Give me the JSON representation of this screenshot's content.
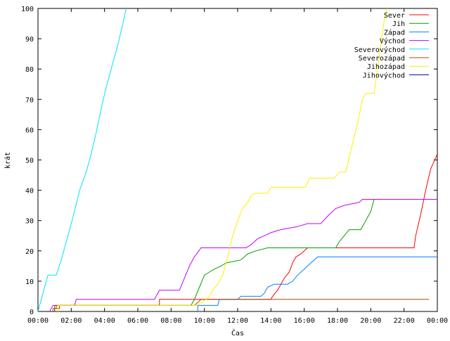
{
  "chart_data": {
    "type": "line",
    "title": "",
    "xlabel": "Čas",
    "ylabel": "krát",
    "x_ticks": [
      "00:00",
      "02:00",
      "04:00",
      "06:00",
      "08:00",
      "10:00",
      "12:00",
      "14:00",
      "16:00",
      "18:00",
      "20:00",
      "22:00",
      "00:00"
    ],
    "x_tick_hours": [
      0,
      2,
      4,
      6,
      8,
      10,
      12,
      14,
      16,
      18,
      20,
      22,
      24
    ],
    "xlim_hours": [
      0,
      24
    ],
    "ylim": [
      0,
      100
    ],
    "y_ticks": [
      0,
      10,
      20,
      30,
      40,
      50,
      60,
      70,
      80,
      90,
      100
    ],
    "grid": false,
    "legend_position": "top-right",
    "series": [
      {
        "name": "Sever",
        "color": "#ff0000",
        "points": [
          [
            1.0,
            0
          ],
          [
            1.0,
            1
          ],
          [
            1.3,
            1
          ],
          [
            1.3,
            2
          ],
          [
            7.3,
            2
          ],
          [
            7.3,
            4
          ],
          [
            14.0,
            4
          ],
          [
            14.1,
            5
          ],
          [
            14.4,
            7
          ],
          [
            14.6,
            9
          ],
          [
            14.8,
            11
          ],
          [
            15.1,
            13
          ],
          [
            15.3,
            16
          ],
          [
            15.5,
            18
          ],
          [
            15.8,
            19
          ],
          [
            16.0,
            20
          ],
          [
            16.2,
            21
          ],
          [
            22.6,
            21
          ],
          [
            22.7,
            25
          ],
          [
            23.0,
            32
          ],
          [
            23.3,
            40
          ],
          [
            23.6,
            47
          ],
          [
            24.0,
            52
          ]
        ]
      },
      {
        "name": "Jih",
        "color": "#00a000",
        "points": [
          [
            1.0,
            0
          ],
          [
            1.0,
            2
          ],
          [
            9.2,
            2
          ],
          [
            9.4,
            4
          ],
          [
            9.7,
            8
          ],
          [
            10.0,
            12
          ],
          [
            10.3,
            13
          ],
          [
            10.6,
            14
          ],
          [
            11.0,
            15
          ],
          [
            11.3,
            16
          ],
          [
            12.2,
            17
          ],
          [
            12.6,
            19
          ],
          [
            13.1,
            20
          ],
          [
            13.8,
            21
          ],
          [
            17.9,
            21
          ],
          [
            18.1,
            23
          ],
          [
            18.4,
            25
          ],
          [
            18.7,
            27
          ],
          [
            19.4,
            27
          ],
          [
            19.7,
            30
          ],
          [
            20.0,
            33
          ],
          [
            20.2,
            37
          ],
          [
            24.0,
            37
          ]
        ]
      },
      {
        "name": "Západ",
        "color": "#0080ff",
        "points": [
          [
            9.6,
            0
          ],
          [
            9.6,
            2
          ],
          [
            10.8,
            2
          ],
          [
            10.9,
            4
          ],
          [
            12.0,
            4
          ],
          [
            12.2,
            5
          ],
          [
            13.4,
            5
          ],
          [
            13.6,
            6
          ],
          [
            13.8,
            8
          ],
          [
            14.2,
            9
          ],
          [
            15.0,
            9
          ],
          [
            15.3,
            10
          ],
          [
            15.6,
            12
          ],
          [
            16.0,
            14
          ],
          [
            16.4,
            16
          ],
          [
            16.8,
            18
          ],
          [
            24.0,
            18
          ]
        ]
      },
      {
        "name": "Východ",
        "color": "#c000ff",
        "points": [
          [
            0.7,
            0
          ],
          [
            0.8,
            1
          ],
          [
            0.9,
            2
          ],
          [
            2.2,
            2
          ],
          [
            2.3,
            4
          ],
          [
            7.0,
            4
          ],
          [
            7.3,
            7
          ],
          [
            8.5,
            7
          ],
          [
            8.8,
            11
          ],
          [
            9.1,
            15
          ],
          [
            9.4,
            18
          ],
          [
            9.8,
            21
          ],
          [
            12.5,
            21
          ],
          [
            12.8,
            22
          ],
          [
            13.2,
            24
          ],
          [
            13.6,
            25
          ],
          [
            14.0,
            26
          ],
          [
            14.6,
            27
          ],
          [
            15.6,
            28
          ],
          [
            16.2,
            29
          ],
          [
            17.0,
            29
          ],
          [
            17.5,
            32
          ],
          [
            17.9,
            34
          ],
          [
            18.4,
            35
          ],
          [
            19.3,
            36
          ],
          [
            19.5,
            37
          ],
          [
            24.0,
            37
          ]
        ]
      },
      {
        "name": "Severovýchod",
        "color": "#00e0ff",
        "points": [
          [
            0.0,
            0
          ],
          [
            0.3,
            6
          ],
          [
            0.6,
            12
          ],
          [
            1.1,
            12
          ],
          [
            1.4,
            17
          ],
          [
            1.7,
            23
          ],
          [
            2.1,
            31
          ],
          [
            2.5,
            40
          ],
          [
            2.9,
            46
          ],
          [
            3.2,
            52
          ],
          [
            3.5,
            59
          ],
          [
            3.8,
            67
          ],
          [
            4.1,
            74
          ],
          [
            4.5,
            82
          ],
          [
            4.8,
            88
          ],
          [
            5.1,
            95
          ],
          [
            5.3,
            100
          ]
        ]
      },
      {
        "name": "Severozápad",
        "color": "#a05000",
        "points": [
          [
            0.9,
            0
          ],
          [
            0.9,
            1
          ],
          [
            1.1,
            1
          ],
          [
            1.1,
            2
          ],
          [
            9.4,
            2
          ],
          [
            9.6,
            3
          ],
          [
            9.8,
            4
          ],
          [
            23.5,
            4
          ]
        ]
      },
      {
        "name": "Jihozápad",
        "color": "#ffee00",
        "points": [
          [
            1.2,
            0
          ],
          [
            1.2,
            2
          ],
          [
            9.5,
            2
          ],
          [
            9.8,
            3
          ],
          [
            10.1,
            4
          ],
          [
            10.3,
            5
          ],
          [
            10.5,
            7
          ],
          [
            10.8,
            9
          ],
          [
            11.1,
            12
          ],
          [
            11.4,
            18
          ],
          [
            11.7,
            25
          ],
          [
            12.0,
            30
          ],
          [
            12.3,
            34
          ],
          [
            12.6,
            36
          ],
          [
            12.8,
            38
          ],
          [
            13.0,
            39
          ],
          [
            13.8,
            39
          ],
          [
            14.0,
            41
          ],
          [
            16.1,
            41
          ],
          [
            16.3,
            44
          ],
          [
            17.8,
            44
          ],
          [
            18.1,
            46
          ],
          [
            18.5,
            46
          ],
          [
            18.8,
            53
          ],
          [
            19.2,
            62
          ],
          [
            19.5,
            70
          ],
          [
            19.7,
            72
          ],
          [
            20.2,
            72
          ],
          [
            20.4,
            80
          ],
          [
            20.6,
            88
          ],
          [
            20.8,
            96
          ],
          [
            21.0,
            100
          ]
        ]
      },
      {
        "name": "Jihovýchod",
        "color": "#0000a0",
        "points": []
      }
    ]
  }
}
